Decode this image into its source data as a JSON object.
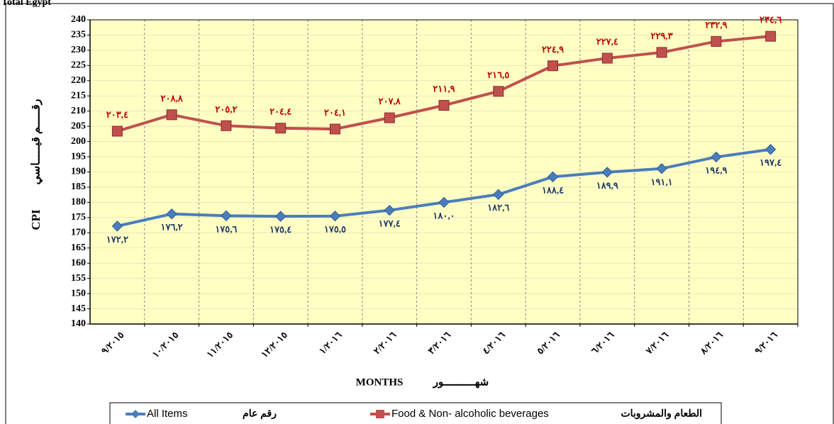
{
  "chart_data": {
    "type": "line",
    "title": "Total Egypt",
    "ylabel": "CPI",
    "ylabel_ar": "رقـــــم قيـــــاسي",
    "xlabel": "MONTHS",
    "xlabel_ar": "شهــــــــــور",
    "categories": [
      "٩/٢٠١٥",
      "١٠/٢٠١٥",
      "١١/٢٠١٥",
      "١٢/٢٠١٥",
      "١/٢٠١٦",
      "٢/٢٠١٦",
      "٣/٢٠١٦",
      "٤/٢٠١٦",
      "٥/٢٠١٦",
      "٦/٢٠١٦",
      "٧/٢٠١٦",
      "٨/٢٠١٦",
      "٩/٢٠١٦"
    ],
    "series": [
      {
        "name": "All Items",
        "name_ar": "رقم عام",
        "color": "#4a7ebb",
        "marker": "diamond",
        "label_color": "#1f3864",
        "label_pos": "below",
        "values": [
          172.2,
          176.2,
          175.6,
          175.4,
          175.5,
          177.4,
          180.0,
          182.6,
          188.4,
          189.9,
          191.1,
          194.9,
          197.4
        ],
        "value_labels": [
          "١٧٢,٢",
          "١٧٦,٢",
          "١٧٥,٦",
          "١٧٥,٤",
          "١٧٥,٥",
          "١٧٧,٤",
          "١٨٠,٠",
          "١٨٢,٦",
          "١٨٨,٤",
          "١٨٩,٩",
          "١٩١,١",
          "١٩٤,٩",
          "١٩٧,٤"
        ]
      },
      {
        "name": "Food & Non- alcoholic  beverages",
        "name_ar": "الطعام والمشروبات",
        "color": "#c0504d",
        "marker": "square",
        "label_color": "#c00000",
        "label_pos": "above",
        "values": [
          203.4,
          208.8,
          205.2,
          204.4,
          204.1,
          207.8,
          211.9,
          216.5,
          224.9,
          227.4,
          229.3,
          232.9,
          234.6
        ],
        "value_labels": [
          "٢٠٣,٤",
          "٢٠٨,٨",
          "٢٠٥,٢",
          "٢٠٤,٤",
          "٢٠٤,١",
          "٢٠٧,٨",
          "٢١١,٩",
          "٢١٦,٥",
          "٢٢٤,٩",
          "٢٢٧,٤",
          "٢٢٩,٣",
          "٢٣٢,٩",
          "٢٣٤,٦"
        ]
      }
    ],
    "ylim": [
      140,
      240
    ],
    "yticks": [
      140,
      145,
      150,
      155,
      160,
      165,
      170,
      175,
      180,
      185,
      190,
      195,
      200,
      205,
      210,
      215,
      220,
      225,
      230,
      235,
      240
    ],
    "grid": true
  }
}
